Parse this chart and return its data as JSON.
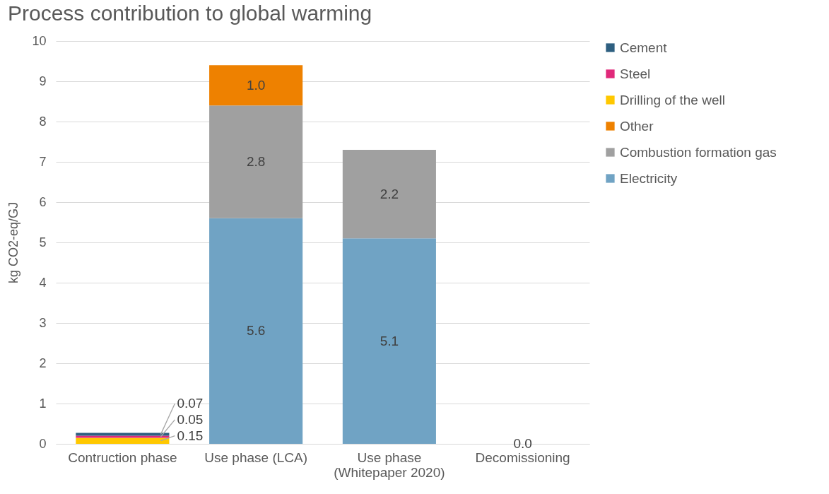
{
  "chart_data": {
    "type": "bar",
    "title": "Process contribution to global warming",
    "ylabel": "kg CO2-eq/GJ",
    "categories": [
      "Contruction phase",
      "Use phase (LCA)",
      "Use phase\n(Whitepaper 2020)",
      "Decomissioning"
    ],
    "stacked": true,
    "series": [
      {
        "name": "Electricity",
        "color": "#70a3c4",
        "values": [
          null,
          5.6,
          5.1,
          0
        ],
        "value_labels": [
          null,
          "5.6",
          "5.1",
          "0.0"
        ]
      },
      {
        "name": "Combustion formation gas",
        "color": "#a0a0a0",
        "values": [
          null,
          2.8,
          2.2,
          null
        ],
        "value_labels": [
          null,
          "2.8",
          "2.2",
          null
        ]
      },
      {
        "name": "Other",
        "color": "#ee8100",
        "values": [
          null,
          1.0,
          null,
          null
        ],
        "value_labels": [
          null,
          "1.0",
          null,
          null
        ]
      },
      {
        "name": "Drilling of the well",
        "color": "#ffc800",
        "values": [
          0.15,
          null,
          null,
          null
        ],
        "value_labels": [
          "0.15",
          null,
          null,
          null
        ]
      },
      {
        "name": "Steel",
        "color": "#e0297a",
        "values": [
          0.05,
          null,
          null,
          null
        ],
        "value_labels": [
          "0.05",
          null,
          null,
          null
        ]
      },
      {
        "name": "Cement",
        "color": "#2e5f80",
        "values": [
          0.07,
          null,
          null,
          null
        ],
        "value_labels": [
          "0.07",
          null,
          null,
          null
        ]
      }
    ],
    "ylim": [
      0,
      10
    ],
    "yticks": [
      0,
      1,
      2,
      3,
      4,
      5,
      6,
      7,
      8,
      9,
      10
    ],
    "grid": "y",
    "legend": "right"
  }
}
